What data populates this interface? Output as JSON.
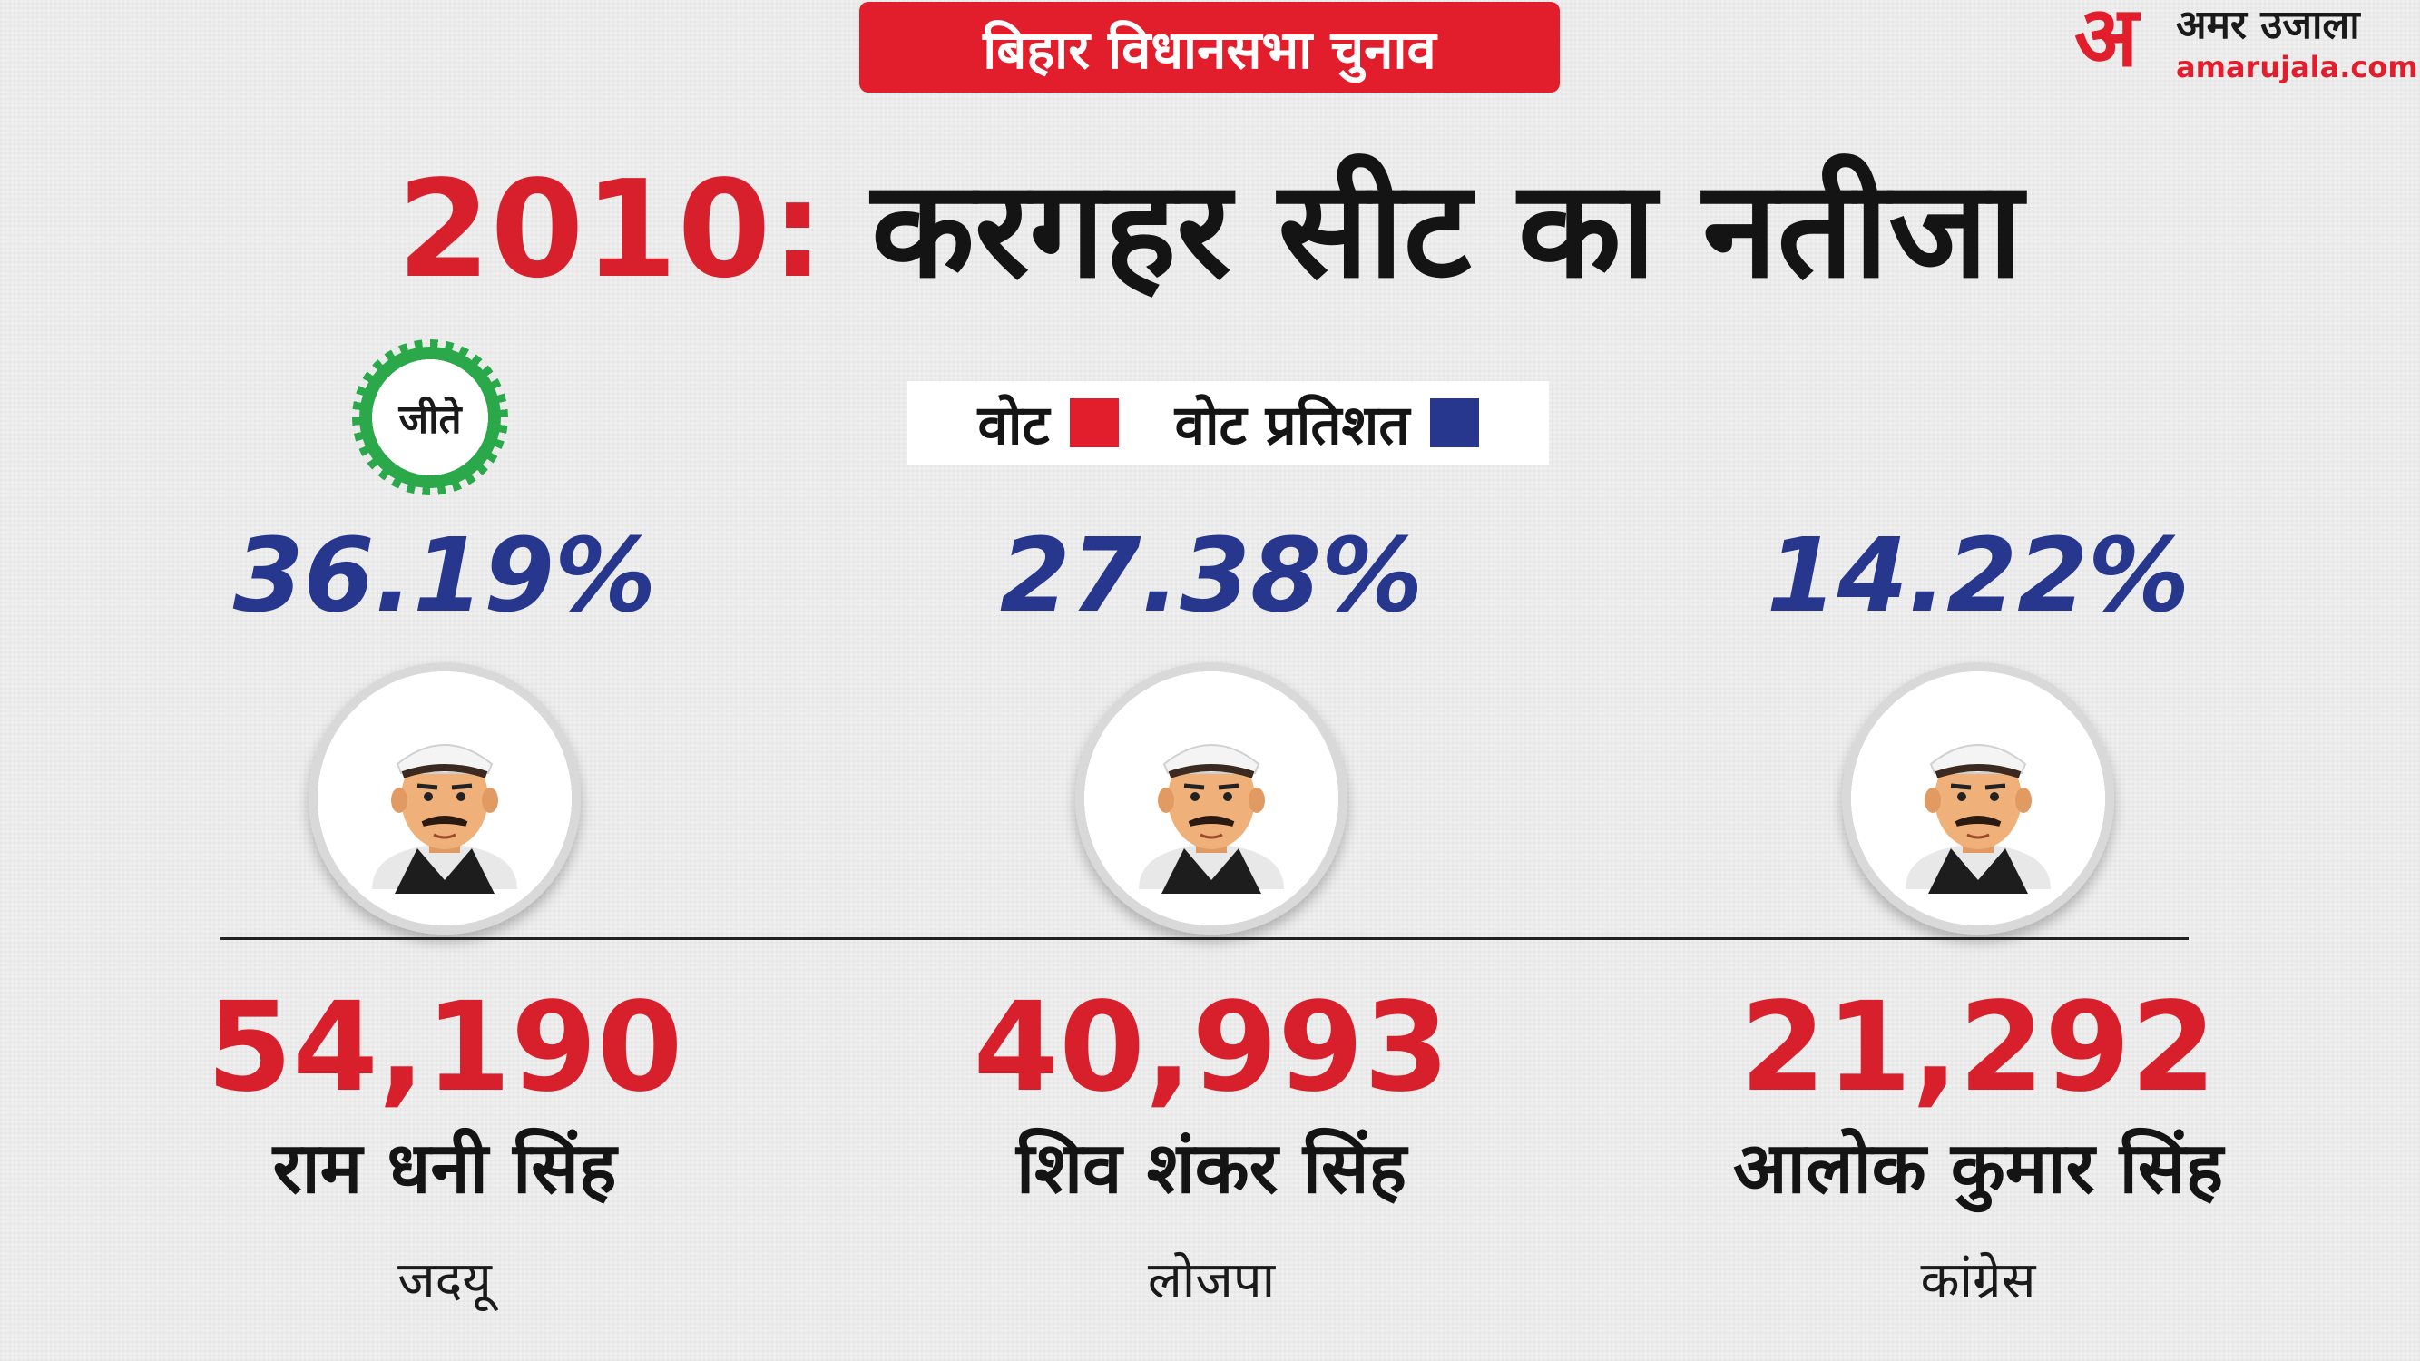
{
  "header": {
    "badge": "बिहार विधानसभा चुनाव",
    "logo_mark": "अ",
    "logo_name": "अमर उजाला",
    "logo_url": "amarujala.com"
  },
  "headline": {
    "year": "2010:",
    "rest": "करगहर सीट का नतीजा"
  },
  "legend": {
    "votes_label": "वोट",
    "percent_label": "वोट प्रतिशत"
  },
  "winner_badge": "जीते",
  "colors": {
    "red": "#e31e2c",
    "blue": "#27378e",
    "green": "#2aa84a"
  },
  "candidates": [
    {
      "name": "राम धनी सिंह",
      "party": "जदयू",
      "votes": "54,190",
      "percent": "36.19%",
      "winner": true
    },
    {
      "name": "शिव शंकर सिंह",
      "party": "लोजपा",
      "votes": "40,993",
      "percent": "27.38%",
      "winner": false
    },
    {
      "name": "आलोक कुमार सिंह",
      "party": "कांग्रेस",
      "votes": "21,292",
      "percent": "14.22%",
      "winner": false
    }
  ]
}
